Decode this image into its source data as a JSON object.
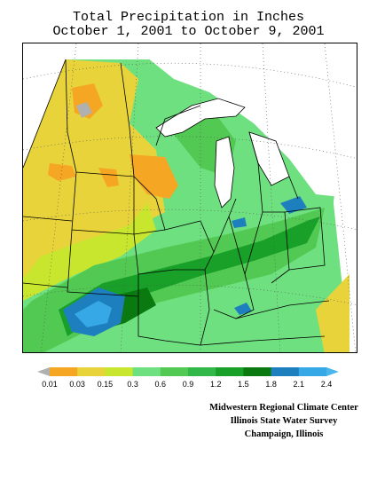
{
  "title": {
    "line1": "Total Precipitation in Inches",
    "line2": "October 1, 2001 to October 9, 2001"
  },
  "legend": {
    "labels": [
      "0.01",
      "0.03",
      "0.15",
      "0.3",
      "0.6",
      "0.9",
      "1.2",
      "1.5",
      "1.8",
      "2.1",
      "2.4"
    ],
    "colors": [
      "#b0b0b0",
      "#f5a623",
      "#e8d43a",
      "#c8e62e",
      "#6fe080",
      "#52c952",
      "#32b848",
      "#18a028",
      "#0a7a10",
      "#1e7fbf",
      "#37a8e6",
      "#4ab6ec"
    ]
  },
  "credits": {
    "line1": "Midwestern Regional Climate Center",
    "line2": "Illinois State Water Survey",
    "line3": "Champaign, Illinois"
  }
}
